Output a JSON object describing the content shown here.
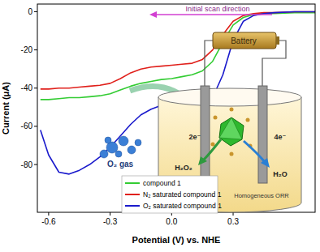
{
  "chart_data": {
    "type": "line",
    "x_label": "Potential (V) vs. NHE",
    "y_label": "Current (μA)",
    "x": [
      -0.64,
      -0.6,
      -0.55,
      -0.5,
      -0.45,
      -0.4,
      -0.35,
      -0.3,
      -0.25,
      -0.2,
      -0.15,
      -0.1,
      -0.05,
      0,
      0.05,
      0.1,
      0.15,
      0.2,
      0.25,
      0.3,
      0.35,
      0.4,
      0.45,
      0.5,
      0.6,
      0.7
    ],
    "series": [
      {
        "name": "compound 1",
        "color": "#33cc33",
        "values": [
          -46,
          -46,
          -45.5,
          -45,
          -45,
          -44.5,
          -44,
          -43,
          -41,
          -39,
          -37.5,
          -36.5,
          -35.5,
          -35,
          -34,
          -33,
          -31,
          -26,
          -16,
          -7,
          -3,
          -1.5,
          -1,
          -1,
          -0.5,
          -0.5
        ]
      },
      {
        "name": "N₂ saturated compound 1",
        "color": "#e0201b",
        "values": [
          -40.5,
          -40.5,
          -40,
          -40,
          -39.5,
          -39,
          -38.5,
          -37.5,
          -35,
          -32,
          -30,
          -29,
          -28.5,
          -28,
          -27.5,
          -27,
          -25,
          -20,
          -12,
          -5,
          -2,
          -1,
          -0.5,
          -0.5,
          0,
          0
        ]
      },
      {
        "name": "O₂ saturated compound 1",
        "color": "#1a1acc",
        "values": [
          -62,
          -75,
          -84,
          -85,
          -83,
          -80,
          -76,
          -71,
          -65,
          -59,
          -54,
          -51,
          -49,
          -48,
          -48,
          -48,
          -47.5,
          -45,
          -33,
          -15,
          -5,
          -2,
          -1,
          -0.5,
          0,
          0
        ]
      }
    ],
    "xlim": [
      -0.655,
      0.7
    ],
    "xticks": [
      -0.6,
      -0.3,
      {
        "value": 0,
        "label": "0.0"
      },
      0.3
    ],
    "ylim": [
      -105,
      4
    ],
    "yticks": [
      0,
      -20,
      -40,
      -60,
      -80
    ],
    "grid": false,
    "legend": "bottom",
    "annotations": [
      "Initial scan direction",
      "Battery",
      "O₂ gas",
      "2e⁻",
      "4e⁻",
      "H₂O₂",
      "H₂O",
      "Homogeneous ORR"
    ]
  }
}
